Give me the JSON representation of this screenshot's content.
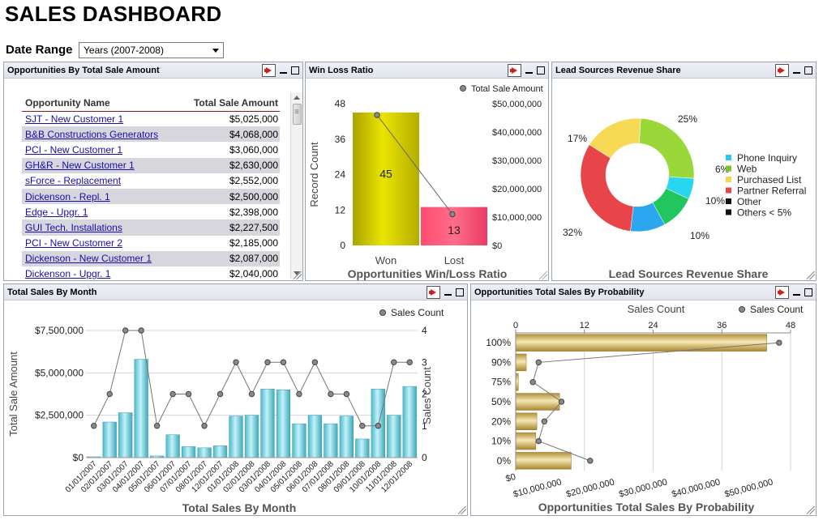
{
  "app": {
    "title": "SALES DASHBOARD"
  },
  "date_range": {
    "label": "Date Range",
    "value": "Years (2007-2008)"
  },
  "panels": {
    "opportunities": {
      "title": "Opportunities By Total Sale Amount",
      "columns": [
        "Opportunity Name",
        "Total Sale Amount"
      ],
      "rows": [
        [
          "SJT - New Customer 1",
          "$5,025,000"
        ],
        [
          "B&B Constructions Generators",
          "$4,068,000"
        ],
        [
          "PCI - New Customer 1",
          "$3,060,000"
        ],
        [
          "GH&R - New Customer 1",
          "$2,630,000"
        ],
        [
          "sForce - Replacement",
          "$2,552,000"
        ],
        [
          "Dickenson - Repl. 1",
          "$2,500,000"
        ],
        [
          "Edge - Upgr. 1",
          "$2,398,000"
        ],
        [
          "GUI Tech. Installations",
          "$2,227,500"
        ],
        [
          "PCI - New Customer 2",
          "$2,185,000"
        ],
        [
          "Dickenson - New Customer 1",
          "$2,087,000"
        ],
        [
          "Dickenson - Upgr. 1",
          "$2,040,000"
        ]
      ]
    },
    "winloss": {
      "title": "Win Loss Ratio"
    },
    "leadsources": {
      "title": "Lead Sources Revenue Share"
    },
    "salesbymonth": {
      "title": "Total Sales By Month"
    },
    "probability": {
      "title": "Opportunities Total Sales By Probability"
    }
  },
  "icons": {
    "export": "export-icon",
    "minimize": "minimize-icon",
    "maximize": "maximize-icon",
    "dropdown": "chevron-down-icon"
  },
  "chart_data": [
    {
      "id": "winloss",
      "type": "bar",
      "title": "Opportunities Win/Loss Ratio",
      "ylabel": "Record Count",
      "y2label": "",
      "categories": [
        "Won",
        "Lost"
      ],
      "series": [
        {
          "values": [
            45,
            13
          ],
          "axis": "left",
          "colors": [
            "#c9c200",
            "#f24a6e"
          ]
        },
        {
          "name": "Total Sale Amount",
          "type": "line",
          "axis": "right",
          "values": [
            46000000,
            11000000
          ]
        }
      ],
      "ylim": [
        0,
        48
      ],
      "yticks": [
        "0",
        "12",
        "24",
        "36",
        "48"
      ],
      "y2lim": [
        0,
        50000000
      ],
      "y2ticks": [
        "$0",
        "$10,000,000",
        "$20,000,000",
        "$30,000,000",
        "$40,000,000",
        "$50,000,000"
      ],
      "data_labels": [
        "45",
        "13"
      ],
      "legend": "top-right"
    },
    {
      "id": "leadsources",
      "type": "pie",
      "title": "Lead Sources Revenue Share",
      "donut": true,
      "slices": [
        {
          "name": "Phone Inquiry",
          "value": 6,
          "label": "6%",
          "color": "#29d6ef"
        },
        {
          "name": "Web",
          "value": 25,
          "label": "25%",
          "color": "#9ad83a"
        },
        {
          "name": "Purchased List",
          "value": 17,
          "label": "17%",
          "color": "#f6d955"
        },
        {
          "name": "Partner Referral",
          "value": 32,
          "label": "32%",
          "color": "#e8454a"
        },
        {
          "name": "Other",
          "value": 10,
          "label": "10%",
          "color": "#2aa7ee"
        },
        {
          "name": "Others < 5%",
          "value": 10,
          "label": "10%",
          "color": "#21c65f"
        }
      ],
      "legend_items": [
        {
          "name": "Phone Inquiry",
          "color": "#29c8f0"
        },
        {
          "name": "Web",
          "color": "#7dc42a"
        },
        {
          "name": "Purchased List",
          "color": "#f1d84b"
        },
        {
          "name": "Partner Referral",
          "color": "#e8454a"
        },
        {
          "name": "Other",
          "color": "#111111"
        },
        {
          "name": "Others < 5%",
          "color": "#111111"
        }
      ],
      "legend": "right"
    },
    {
      "id": "salesbymonth",
      "type": "bar",
      "title": "Total Sales By Month",
      "xlabel": "",
      "ylabel": "Total Sale Amount",
      "y2label": "Sales Count",
      "categories": [
        "01/01/2007",
        "02/01/2007",
        "03/01/2007",
        "04/01/2007",
        "05/01/2007",
        "06/01/2007",
        "07/01/2007",
        "08/01/2007",
        "12/01/2007",
        "01/01/2008",
        "02/01/2008",
        "03/01/2008",
        "04/01/2008",
        "05/01/2008",
        "06/01/2008",
        "07/01/2008",
        "08/01/2008",
        "09/01/2008",
        "10/01/2008",
        "11/01/2008",
        "12/01/2008"
      ],
      "series": [
        {
          "name": "Total Sale Amount",
          "type": "bar",
          "axis": "left",
          "values": [
            50000,
            2100000,
            2650000,
            5800000,
            100000,
            1350000,
            650000,
            580000,
            700000,
            2450000,
            2500000,
            4050000,
            4000000,
            2000000,
            2500000,
            2000000,
            2450000,
            1100000,
            4050000,
            2500000,
            4200000
          ]
        },
        {
          "name": "Sales Count",
          "type": "line",
          "axis": "right",
          "values": [
            1,
            2,
            4,
            4,
            1,
            2,
            2,
            1,
            2,
            3,
            2,
            3,
            3,
            2,
            3,
            2,
            2,
            1,
            1,
            3,
            3
          ]
        }
      ],
      "ylim": [
        0,
        7500000
      ],
      "yticks": [
        "$0",
        "$2,500,000",
        "$5,000,000",
        "$7,500,000"
      ],
      "y2lim": [
        0,
        4
      ],
      "y2ticks": [
        "0",
        "1",
        "2",
        "3",
        "4"
      ],
      "legend": "top-right"
    },
    {
      "id": "probability",
      "type": "bar",
      "orientation": "horizontal",
      "title": "Opportunities Total Sales By Probability",
      "x2label": "Sales Count",
      "categories": [
        "100%",
        "90%",
        "75%",
        "50%",
        "20%",
        "10%",
        "0%"
      ],
      "series": [
        {
          "name": "Total Sales",
          "type": "bar",
          "axis": "bottom",
          "values": [
            47500000,
            2000000,
            500000,
            8300000,
            4000000,
            3800000,
            10500000
          ]
        },
        {
          "name": "Sales Count",
          "type": "line",
          "axis": "top",
          "values": [
            46,
            4,
            3,
            8,
            5,
            4,
            13
          ]
        }
      ],
      "xlim": [
        0,
        52000000
      ],
      "xticks": [
        "$0",
        "$10,000,000",
        "$20,000,000",
        "$30,000,000",
        "$40,000,000",
        "$50,000,000"
      ],
      "x2lim": [
        0,
        48
      ],
      "x2ticks": [
        "0",
        "12",
        "24",
        "36",
        "48"
      ],
      "legend": "top-right"
    }
  ]
}
